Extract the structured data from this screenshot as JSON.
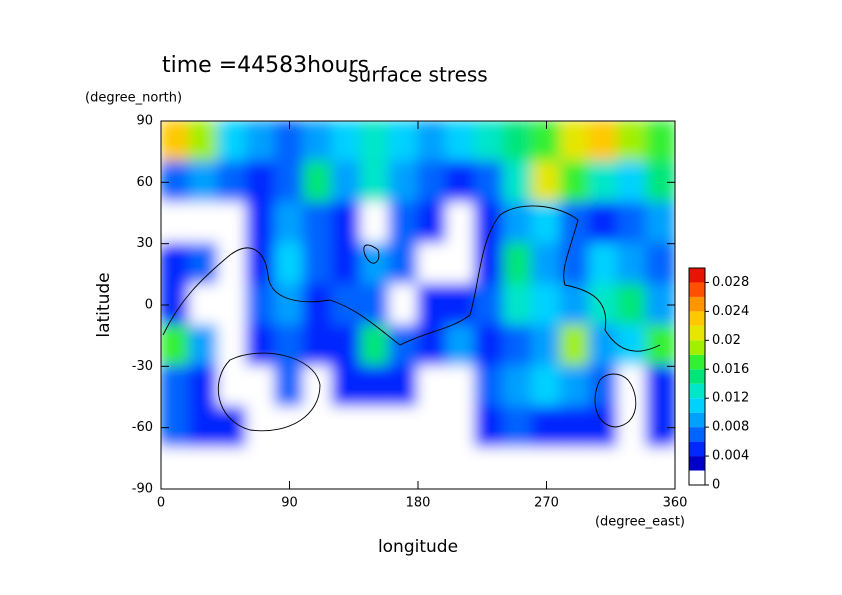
{
  "chart_data": {
    "type": "contourf",
    "title": "surface stress",
    "subtitle": "time =44583hours",
    "y_unit": "(degree_north)",
    "ylabel": "latitude",
    "xlabel": "longitude",
    "x_unit": "(degree_east)",
    "xlim": [
      0,
      360
    ],
    "ylim": [
      -90,
      90
    ],
    "xticks": [
      0,
      90,
      180,
      270,
      360
    ],
    "yticks": [
      90,
      60,
      30,
      0,
      -30,
      -60,
      -90
    ],
    "x": [
      10,
      30,
      50,
      70,
      90,
      110,
      130,
      150,
      170,
      190,
      210,
      230,
      250,
      270,
      290,
      310,
      330,
      350
    ],
    "y": [
      80,
      60,
      40,
      20,
      0,
      -20,
      -40,
      -60,
      -80
    ],
    "values": [
      [
        0.022,
        0.018,
        0.01,
        0.008,
        0.006,
        0.008,
        0.01,
        0.012,
        0.01,
        0.008,
        0.01,
        0.012,
        0.014,
        0.016,
        0.02,
        0.022,
        0.018,
        0.016
      ],
      [
        0.006,
        0.008,
        0.006,
        0.004,
        0.006,
        0.014,
        0.008,
        0.012,
        0.008,
        0.006,
        0.004,
        0.006,
        0.012,
        0.02,
        0.016,
        0.012,
        0.01,
        0.014
      ],
      [
        0.001,
        0.001,
        0.001,
        0.004,
        0.008,
        0.006,
        0.004,
        0.001,
        0.006,
        0.004,
        0.001,
        0.004,
        0.008,
        0.01,
        0.006,
        0.004,
        0.006,
        0.008
      ],
      [
        0.004,
        0.006,
        0.001,
        0.004,
        0.01,
        0.006,
        0.004,
        0.008,
        0.006,
        0.001,
        0.001,
        0.004,
        0.014,
        0.008,
        0.006,
        0.01,
        0.008,
        0.006
      ],
      [
        0.004,
        0.001,
        0.001,
        0.006,
        0.008,
        0.004,
        0.006,
        0.006,
        0.001,
        0.004,
        0.004,
        0.006,
        0.012,
        0.01,
        0.008,
        0.012,
        0.014,
        0.008
      ],
      [
        0.016,
        0.008,
        0.001,
        0.004,
        0.006,
        0.004,
        0.004,
        0.014,
        0.006,
        0.004,
        0.008,
        0.004,
        0.006,
        0.008,
        0.018,
        0.008,
        0.01,
        0.016
      ],
      [
        0.006,
        0.004,
        0.001,
        0.001,
        0.006,
        0.001,
        0.004,
        0.004,
        0.004,
        0.001,
        0.001,
        0.006,
        0.008,
        0.01,
        0.008,
        0.006,
        0.001,
        0.004
      ],
      [
        0.006,
        0.004,
        0.004,
        0.001,
        0.001,
        0.001,
        0.001,
        0.001,
        0.001,
        0.001,
        0.001,
        0.004,
        0.006,
        0.004,
        0.004,
        0.004,
        0.001,
        0.004
      ],
      [
        0,
        0,
        0,
        0,
        0,
        0,
        0,
        0,
        0,
        0,
        0,
        0,
        0,
        0,
        0,
        0,
        0,
        0
      ]
    ],
    "clim": [
      0,
      0.03
    ],
    "colors": [
      "#ffffff",
      "#0000c8",
      "#0028ff",
      "#0064ff",
      "#00a0ff",
      "#00d2ff",
      "#00e6c8",
      "#00e678",
      "#32f032",
      "#a0f000",
      "#e6e600",
      "#ffc800",
      "#ff9600",
      "#ff5000",
      "#e61400"
    ],
    "colorbar_ticks": [
      0,
      0.004,
      0.008,
      0.012,
      0.016,
      0.02,
      0.024,
      0.028
    ]
  }
}
